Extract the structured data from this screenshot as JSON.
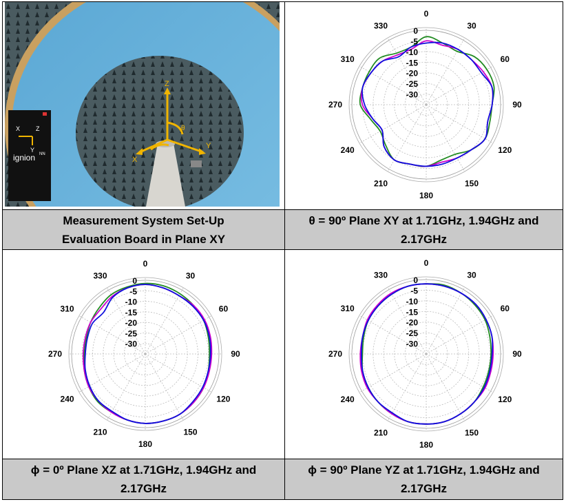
{
  "cells": {
    "photo": {
      "caption_line1": "Measurement System Set-Up",
      "caption_line2": "Evaluation Board in Plane XY",
      "brand_text": "ignion",
      "brand_superscript": "NN",
      "axis_x": "X",
      "axis_y": "Y",
      "axis_z": "Z",
      "axis_theta": "θ"
    },
    "xy": {
      "caption_line1": "θ = 90º Plane XY at 1.71GHz, 1.94GHz and",
      "caption_line2": "2.17GHz"
    },
    "xz": {
      "caption_line1": "ϕ = 0º Plane XZ at 1.71GHz, 1.94GHz and",
      "caption_line2": "2.17GHz"
    },
    "yz": {
      "caption_line1": "ϕ = 90º Plane YZ at 1.71GHz, 1.94GHz and",
      "caption_line2": "2.17GHz"
    }
  },
  "chart_data": [
    {
      "id": "xy",
      "type": "polar",
      "angle_labels": [
        "0",
        "30",
        "60",
        "90",
        "120",
        "150",
        "180",
        "210",
        "240",
        "270",
        "310",
        "330"
      ],
      "radial_labels": [
        "0",
        "-5",
        "-10",
        "-15",
        "-20",
        "-25",
        "-30"
      ],
      "rlim": [
        -35,
        0
      ],
      "series": [
        {
          "color": "#228b22",
          "angles": [
            0,
            15,
            30,
            45,
            60,
            75,
            90,
            105,
            120,
            135,
            150,
            165,
            180,
            195,
            210,
            225,
            240,
            255,
            270,
            285,
            300,
            315,
            330,
            345
          ],
          "values": [
            -3,
            -5,
            -6,
            -3,
            -2,
            -2,
            -4,
            -4,
            -3,
            -5,
            -8,
            -8,
            -6,
            -6,
            -5,
            -8,
            -10,
            -8,
            -4,
            -4,
            -4,
            -4,
            -7,
            -7
          ]
        },
        {
          "color": "#cc00cc",
          "angles": [
            0,
            15,
            30,
            45,
            60,
            75,
            90,
            105,
            120,
            135,
            150,
            165,
            180,
            195,
            210,
            225,
            240,
            255,
            270,
            285,
            300,
            315,
            330,
            345
          ],
          "values": [
            -5,
            -6,
            -5,
            -5,
            -4,
            -3,
            -4,
            -5,
            -3,
            -5,
            -6,
            -7,
            -6,
            -6,
            -5,
            -7,
            -11,
            -9,
            -5,
            -4,
            -5,
            -6,
            -8,
            -8
          ]
        },
        {
          "color": "#1010dd",
          "angles": [
            0,
            15,
            30,
            45,
            60,
            75,
            90,
            105,
            120,
            135,
            150,
            165,
            180,
            195,
            210,
            225,
            240,
            255,
            270,
            285,
            300,
            315,
            330,
            345
          ],
          "values": [
            -6,
            -5,
            -5,
            -5,
            -5,
            -3,
            -4,
            -5,
            -3,
            -5,
            -6,
            -6,
            -6,
            -6,
            -5,
            -7,
            -11,
            -9,
            -6,
            -4,
            -5,
            -6,
            -9,
            -7
          ]
        }
      ]
    },
    {
      "id": "xz",
      "type": "polar",
      "angle_labels": [
        "0",
        "30",
        "60",
        "90",
        "120",
        "150",
        "180",
        "210",
        "240",
        "270",
        "310",
        "330"
      ],
      "radial_labels": [
        "0",
        "-5",
        "-10",
        "-15",
        "-20",
        "-25",
        "-30"
      ],
      "rlim": [
        -35,
        0
      ],
      "series": [
        {
          "color": "#228b22",
          "angles": [
            0,
            15,
            30,
            45,
            60,
            75,
            90,
            105,
            120,
            135,
            150,
            165,
            180,
            195,
            210,
            225,
            240,
            255,
            270,
            285,
            300,
            315,
            330,
            345
          ],
          "values": [
            -1.5,
            -1.5,
            -2,
            -2.5,
            -3,
            -4,
            -4.5,
            -4,
            -3,
            -2.5,
            -2,
            -2,
            -2,
            -2.5,
            -3,
            -3,
            -4,
            -5,
            -6,
            -6,
            -5,
            -4,
            -2.5,
            -2
          ]
        },
        {
          "color": "#cc00cc",
          "angles": [
            0,
            15,
            30,
            45,
            60,
            75,
            90,
            105,
            120,
            135,
            150,
            165,
            180,
            195,
            210,
            225,
            240,
            255,
            270,
            285,
            300,
            315,
            330,
            345
          ],
          "values": [
            -2,
            -2.5,
            -3,
            -2.5,
            -2.5,
            -3,
            -3.5,
            -3.5,
            -3,
            -2.5,
            -2,
            -2,
            -2,
            -2.5,
            -3,
            -3.5,
            -4,
            -5,
            -5.5,
            -5.5,
            -5,
            -5,
            -3.5,
            -2.5
          ]
        },
        {
          "color": "#1010dd",
          "angles": [
            0,
            15,
            30,
            45,
            60,
            75,
            90,
            105,
            120,
            135,
            150,
            165,
            180,
            195,
            210,
            225,
            240,
            255,
            270,
            285,
            300,
            315,
            330,
            345
          ],
          "values": [
            -2,
            -2.5,
            -3,
            -3,
            -3,
            -3.5,
            -4,
            -4,
            -3.5,
            -3,
            -2,
            -2,
            -2,
            -2.5,
            -3.5,
            -3.5,
            -4.5,
            -5.5,
            -6.5,
            -6.5,
            -6,
            -7,
            -4,
            -2.5
          ]
        }
      ]
    },
    {
      "id": "yz",
      "type": "polar",
      "angle_labels": [
        "0",
        "30",
        "60",
        "90",
        "120",
        "150",
        "180",
        "210",
        "240",
        "270",
        "310",
        "330"
      ],
      "radial_labels": [
        "0",
        "-5",
        "-10",
        "-15",
        "-20",
        "-25",
        "-30"
      ],
      "rlim": [
        -35,
        0
      ],
      "series": [
        {
          "color": "#228b22",
          "angles": [
            0,
            15,
            30,
            45,
            60,
            75,
            90,
            105,
            120,
            135,
            150,
            165,
            180,
            195,
            210,
            225,
            240,
            255,
            270,
            285,
            300,
            315,
            330,
            345
          ],
          "values": [
            -2,
            -1.5,
            -2,
            -2.5,
            -3,
            -4,
            -4.5,
            -4.5,
            -4,
            -3,
            -2.5,
            -2,
            -2,
            -2,
            -2.5,
            -3,
            -3.5,
            -4,
            -5,
            -4.5,
            -3.5,
            -3,
            -2.5,
            -2
          ]
        },
        {
          "color": "#cc00cc",
          "angles": [
            0,
            15,
            30,
            45,
            60,
            75,
            90,
            105,
            120,
            135,
            150,
            165,
            180,
            195,
            210,
            225,
            240,
            255,
            270,
            285,
            300,
            315,
            330,
            345
          ],
          "values": [
            -2,
            -2,
            -2,
            -2,
            -2.5,
            -3,
            -3.5,
            -3.5,
            -3,
            -3,
            -2.5,
            -2,
            -2,
            -2,
            -2.5,
            -3,
            -3,
            -3.5,
            -4,
            -4,
            -3,
            -2.5,
            -2,
            -2
          ]
        },
        {
          "color": "#1010dd",
          "angles": [
            0,
            15,
            30,
            45,
            60,
            75,
            90,
            105,
            120,
            135,
            150,
            165,
            180,
            195,
            210,
            225,
            240,
            255,
            270,
            285,
            300,
            315,
            330,
            345
          ],
          "values": [
            -2,
            -2,
            -2,
            -2,
            -2.5,
            -3,
            -4,
            -4,
            -3.5,
            -3,
            -2.5,
            -2,
            -2,
            -2,
            -3,
            -3,
            -3.5,
            -4,
            -4.5,
            -4,
            -3.5,
            -3,
            -2.5,
            -2
          ]
        }
      ]
    }
  ]
}
